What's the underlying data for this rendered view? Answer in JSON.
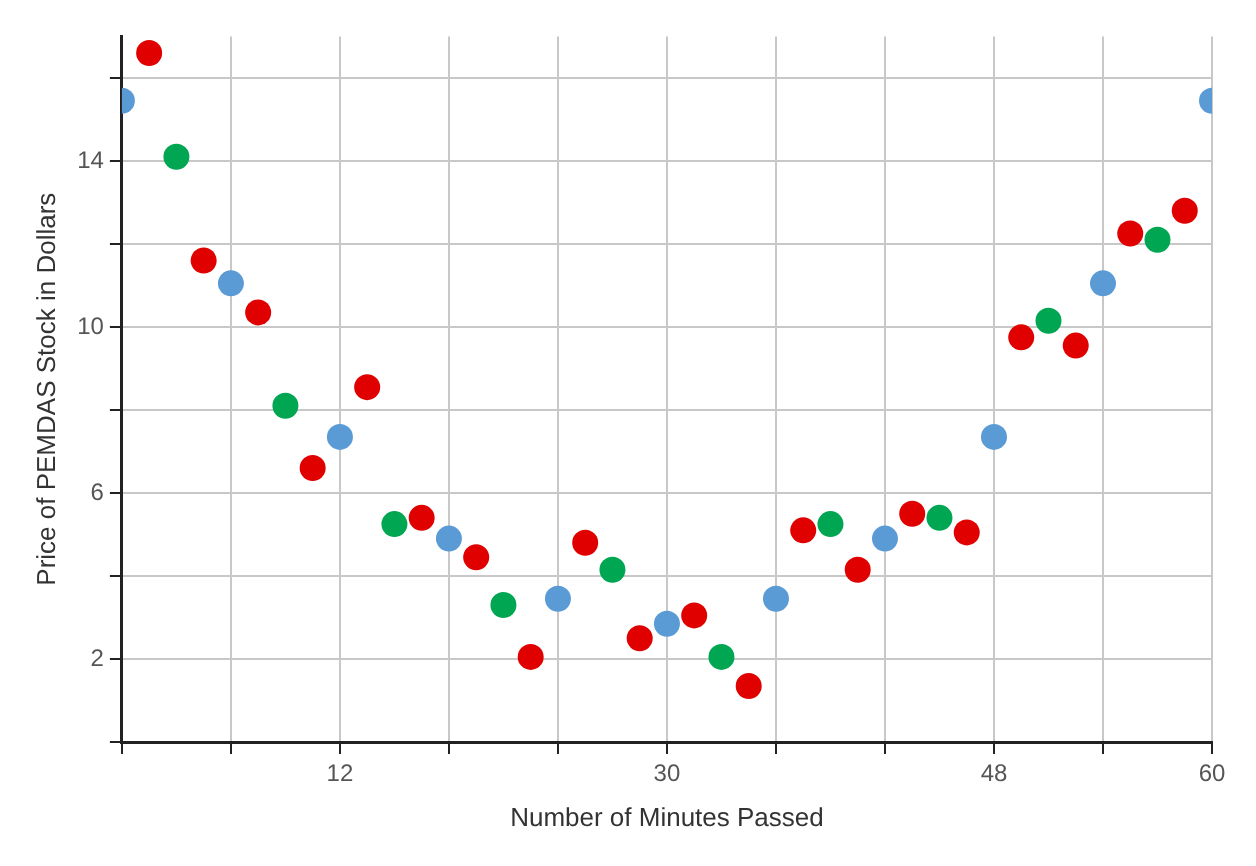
{
  "chart_data": {
    "type": "scatter",
    "xlabel": "Number of Minutes Passed",
    "ylabel": "Price of PEMDAS Stock in Dollars",
    "xlim": [
      0,
      60
    ],
    "ylim": [
      0,
      17
    ],
    "xticks": [
      {
        "value": 0,
        "label": null
      },
      {
        "value": 6,
        "label": null
      },
      12,
      {
        "value": 18,
        "label": null
      },
      {
        "value": 24,
        "label": null
      },
      30,
      {
        "value": 36,
        "label": null
      },
      {
        "value": 42,
        "label": null
      },
      48,
      {
        "value": 54,
        "label": null
      },
      60
    ],
    "yticks": [
      {
        "value": 0,
        "label": null
      },
      2,
      {
        "value": 4,
        "label": null
      },
      6,
      {
        "value": 8,
        "label": null
      },
      10,
      {
        "value": 12,
        "label": null
      },
      14,
      {
        "value": 16,
        "label": null
      }
    ],
    "grid": true,
    "legend": false,
    "marker": "circle",
    "series": [
      {
        "color": "#5b9bd5",
        "x": [
          0,
          6,
          12,
          18,
          24,
          30,
          36,
          42,
          48,
          54,
          60
        ],
        "values": [
          15.45,
          11.05,
          7.35,
          4.9,
          3.45,
          2.85,
          3.45,
          4.9,
          7.35,
          11.05,
          15.45
        ]
      },
      {
        "color": "#e00000",
        "x": [
          1.5,
          4.5,
          7.5,
          10.5,
          13.5,
          16.5,
          19.5,
          22.5,
          25.5,
          28.5,
          31.5,
          34.5,
          37.5,
          40.5,
          43.5,
          46.5,
          49.5,
          52.5,
          55.5,
          58.5
        ],
        "values": [
          16.6,
          11.6,
          10.35,
          6.6,
          8.55,
          5.4,
          4.45,
          2.05,
          4.8,
          2.5,
          3.05,
          1.35,
          5.1,
          4.15,
          5.5,
          5.05,
          9.75,
          9.55,
          12.25,
          12.8
        ]
      },
      {
        "color": "#00a651",
        "x": [
          3,
          9,
          15,
          21,
          27,
          33,
          39,
          45,
          51,
          57
        ],
        "values": [
          14.1,
          8.1,
          5.25,
          3.3,
          4.15,
          2.05,
          5.25,
          5.4,
          10.15,
          12.1
        ]
      }
    ]
  }
}
